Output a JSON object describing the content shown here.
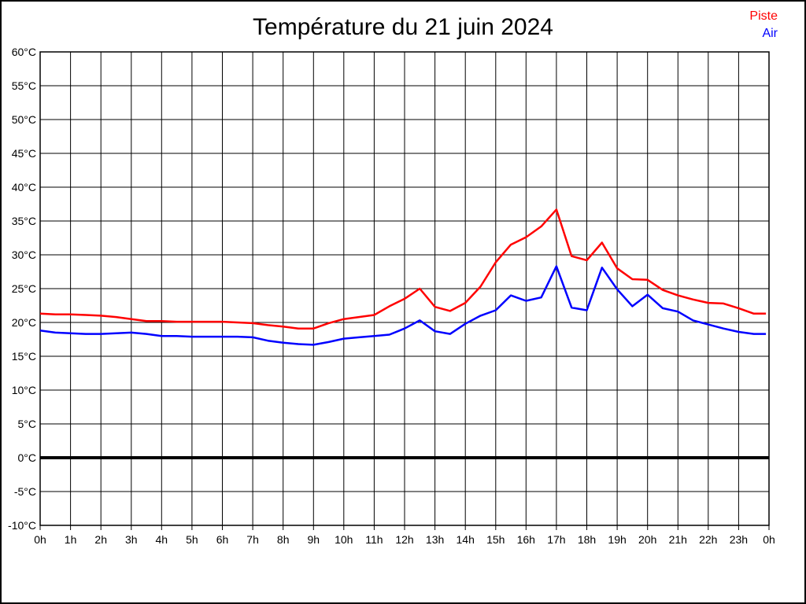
{
  "chart_data": {
    "type": "line",
    "title": "Température du 21 juin 2024",
    "xlabel": "",
    "ylabel": "",
    "ylim": [
      -10,
      60
    ],
    "y_tick_step": 5,
    "y_tick_suffix": "°C",
    "x_tick_labels": [
      "0h",
      "1h",
      "2h",
      "3h",
      "4h",
      "5h",
      "6h",
      "7h",
      "8h",
      "9h",
      "10h",
      "11h",
      "12h",
      "13h",
      "14h",
      "15h",
      "16h",
      "17h",
      "18h",
      "19h",
      "20h",
      "21h",
      "22h",
      "23h",
      "0h"
    ],
    "grid": true,
    "zero_line_bold": true,
    "legend_position": "top-right",
    "colors": {
      "grid": "#000000",
      "frame": "#000000",
      "zero_line": "#000000",
      "title": "#000000"
    },
    "x_hours": [
      0,
      0.5,
      1,
      1.5,
      2,
      2.5,
      3,
      3.5,
      4,
      4.5,
      5,
      5.5,
      6,
      6.5,
      7,
      7.5,
      8,
      8.5,
      9,
      9.5,
      10,
      10.5,
      11,
      11.5,
      12,
      12.5,
      13,
      13.5,
      14,
      14.5,
      15,
      15.5,
      16,
      16.5,
      17,
      17.5,
      18,
      18.5,
      19,
      19.5,
      20,
      20.5,
      21,
      21.5,
      22,
      22.5,
      23,
      23.5,
      23.9
    ],
    "series": [
      {
        "name": "Piste",
        "color": "#ff0000",
        "values": [
          21.3,
          21.2,
          21.2,
          21.1,
          21.0,
          20.8,
          20.5,
          20.2,
          20.2,
          20.1,
          20.1,
          20.1,
          20.1,
          20.0,
          19.9,
          19.6,
          19.4,
          19.1,
          19.1,
          19.9,
          20.5,
          20.8,
          21.1,
          22.4,
          23.5,
          25.0,
          22.3,
          21.7,
          22.9,
          25.3,
          28.9,
          31.5,
          32.6,
          34.2,
          36.7,
          29.8,
          29.2,
          31.8,
          28.0,
          26.4,
          26.3,
          24.8,
          24.0,
          23.4,
          22.9,
          22.8,
          22.1,
          21.3,
          21.3
        ]
      },
      {
        "name": "Air",
        "color": "#0000ff",
        "values": [
          18.8,
          18.5,
          18.4,
          18.3,
          18.3,
          18.4,
          18.5,
          18.3,
          18.0,
          18.0,
          17.9,
          17.9,
          17.9,
          17.9,
          17.8,
          17.3,
          17.0,
          16.8,
          16.7,
          17.1,
          17.6,
          17.8,
          18.0,
          18.2,
          19.1,
          20.3,
          18.7,
          18.3,
          19.8,
          21.0,
          21.8,
          24.0,
          23.2,
          23.7,
          28.3,
          22.2,
          21.8,
          28.1,
          24.9,
          22.4,
          24.1,
          22.1,
          21.6,
          20.3,
          19.7,
          19.1,
          18.6,
          18.3,
          18.3
        ]
      }
    ]
  }
}
